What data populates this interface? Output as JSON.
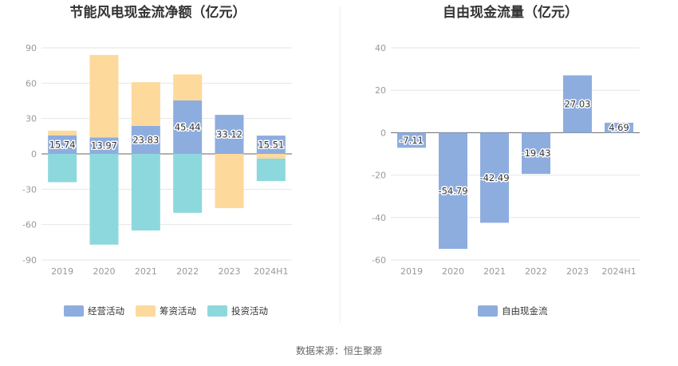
{
  "source_text": "数据来源：恒生聚源",
  "chart_data": [
    {
      "type": "bar",
      "stacked": true,
      "title": "节能风电现金流净额（亿元）",
      "categories": [
        "2019",
        "2020",
        "2021",
        "2022",
        "2023",
        "2024H1"
      ],
      "ylim": [
        -90,
        90
      ],
      "yticks": [
        -90,
        -60,
        -30,
        0,
        30,
        60,
        90
      ],
      "grid": true,
      "legend_position": "bottom",
      "series": [
        {
          "name": "经营活动",
          "color": "#8eaddf",
          "values": [
            15.74,
            13.97,
            23.83,
            45.44,
            33.12,
            15.51
          ],
          "labeled": true
        },
        {
          "name": "筹资活动",
          "color": "#fdd99b",
          "values": [
            4,
            70,
            37,
            22,
            -46,
            -4
          ],
          "labeled": false
        },
        {
          "name": "投资活动",
          "color": "#8dd8dc",
          "values": [
            -24,
            -77,
            -65,
            -50,
            0,
            -19
          ],
          "labeled": false
        }
      ]
    },
    {
      "type": "bar",
      "title": "自由现金流量（亿元）",
      "categories": [
        "2019",
        "2020",
        "2021",
        "2022",
        "2023",
        "2024H1"
      ],
      "ylim": [
        -60,
        40
      ],
      "yticks": [
        -60,
        -40,
        -20,
        0,
        20,
        40
      ],
      "grid": true,
      "legend_position": "bottom",
      "series": [
        {
          "name": "自由现金流",
          "color": "#8eaddf",
          "values": [
            -7.11,
            -54.79,
            -42.49,
            -19.43,
            27.03,
            4.69
          ],
          "labeled": true
        }
      ]
    }
  ]
}
